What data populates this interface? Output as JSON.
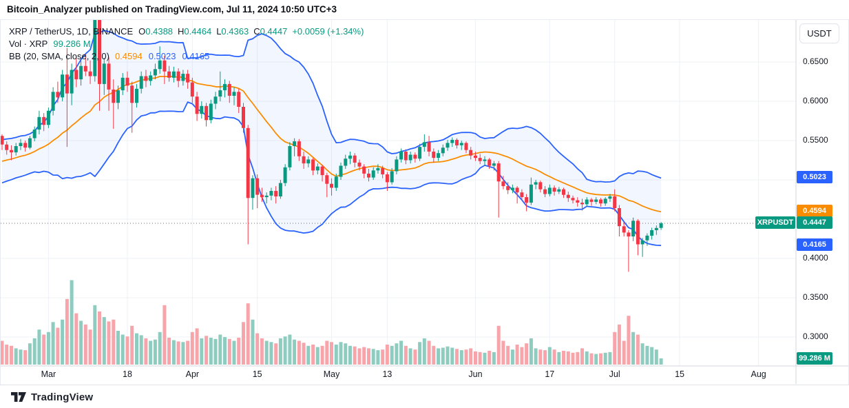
{
  "header": {
    "title": "Bitcoin_Analyzer published on TradingView.com, Jul 11, 2024 10:50 UTC+3"
  },
  "legend": {
    "symbol": "XRP / TetherUS, 1D, BINANCE",
    "ohlc": [
      {
        "label": "O",
        "value": "0.4388"
      },
      {
        "label": "H",
        "value": "0.4464"
      },
      {
        "label": "L",
        "value": "0.4363"
      },
      {
        "label": "C",
        "value": "0.4447"
      }
    ],
    "change": "+0.0059 (+1.34%)",
    "volume_label": "Vol · XRP",
    "volume_value": "99.286 M",
    "bb_label": "BB (20, SMA, close, 2, 0)",
    "bb_values": [
      {
        "value": "0.4594",
        "color": "#fb8c00"
      },
      {
        "value": "0.5023",
        "color": "#2962ff"
      },
      {
        "value": "0.4165",
        "color": "#2962ff"
      }
    ]
  },
  "axis": {
    "currency_button": "USDT",
    "price_labels": [
      {
        "text": "0.6500",
        "price": 0.65
      },
      {
        "text": "0.6000",
        "price": 0.6
      },
      {
        "text": "0.5500",
        "price": 0.55
      },
      {
        "text": "0.4000",
        "price": 0.4
      },
      {
        "text": "0.3500",
        "price": 0.35
      },
      {
        "text": "0.3000",
        "price": 0.3
      }
    ],
    "price_badges": [
      {
        "text": "0.5023",
        "price": 0.5023,
        "bg": "#2962ff",
        "name": "bb-upper-badge"
      },
      {
        "text": "0.4594",
        "price": 0.4594,
        "bg": "#fb8c00",
        "name": "bb-basis-badge"
      },
      {
        "text": "0.4447",
        "price": 0.4447,
        "bg": "#089981",
        "name": "last-price-badge"
      },
      {
        "text": "0.4165",
        "price": 0.4165,
        "bg": "#2962ff",
        "name": "bb-lower-badge"
      }
    ],
    "symbol_chip": {
      "text": "XRPUSDT",
      "price": 0.4447
    },
    "volume_badge": {
      "text": "99.286 M",
      "y": 520,
      "bg": "#089981"
    },
    "time_labels": [
      {
        "text": "Mar",
        "i": 10
      },
      {
        "text": "18",
        "i": 27
      },
      {
        "text": "Apr",
        "i": 41
      },
      {
        "text": "15",
        "i": 55
      },
      {
        "text": "May",
        "i": 71
      },
      {
        "text": "13",
        "i": 83
      },
      {
        "text": "Jun",
        "i": 102
      },
      {
        "text": "17",
        "i": 118
      },
      {
        "text": "Jul",
        "i": 132
      },
      {
        "text": "15",
        "i": 146
      },
      {
        "text": "Aug",
        "i": 163
      }
    ]
  },
  "footer": {
    "brand": "TradingView"
  },
  "colors": {
    "up": "#089981",
    "down": "#f23645",
    "vol_up": "#8fccc0",
    "vol_down": "#f7a5ab",
    "bb_line": "#2962ff",
    "bb_basis": "#fb8c00",
    "bb_fill": "rgba(41,98,255,0.06)",
    "grid": "#eef1f6",
    "axis_line": "#d1d4dc",
    "text": "#131722",
    "dotted_price_line": "#089981"
  },
  "chart_data": {
    "type": "candlestick",
    "symbol": "XRPUSDT",
    "exchange": "BINANCE",
    "interval": "1D",
    "title": "XRP / TetherUS, 1D, BINANCE",
    "x_range": {
      "start": "2024-02-20",
      "end": "2024-07-11"
    },
    "y_axis": {
      "visible_min": 0.28,
      "visible_max": 0.71,
      "gridlines": [
        0.65,
        0.6,
        0.55,
        0.5,
        0.45,
        0.4,
        0.35,
        0.3
      ]
    },
    "last_bar": {
      "open": 0.4388,
      "high": 0.4464,
      "low": 0.4363,
      "close": 0.4447,
      "change": 0.0059,
      "change_pct": 1.34,
      "volume_m": 99.286
    },
    "indicator_bb": {
      "period": 20,
      "source": "close",
      "mult": 2,
      "offset": 0,
      "basis": 0.4594,
      "upper": 0.5023,
      "lower": 0.4165
    },
    "current_price_line": 0.4447,
    "seed_closes": [
      0.506,
      0.51,
      0.508,
      0.512,
      0.515,
      0.511,
      0.509,
      0.513,
      0.518,
      0.522,
      0.519,
      0.523,
      0.528,
      0.532,
      0.529,
      0.535,
      0.54,
      0.546,
      0.552
    ],
    "candles_format": [
      "open",
      "high",
      "low",
      "close",
      "volume_millions"
    ],
    "candles": [
      [
        0.556,
        0.558,
        0.538,
        0.545,
        380
      ],
      [
        0.545,
        0.549,
        0.532,
        0.538,
        320
      ],
      [
        0.538,
        0.544,
        0.525,
        0.535,
        300
      ],
      [
        0.535,
        0.547,
        0.531,
        0.543,
        260
      ],
      [
        0.543,
        0.552,
        0.538,
        0.547,
        240
      ],
      [
        0.547,
        0.55,
        0.536,
        0.541,
        230
      ],
      [
        0.541,
        0.556,
        0.539,
        0.553,
        340
      ],
      [
        0.553,
        0.568,
        0.549,
        0.564,
        420
      ],
      [
        0.564,
        0.588,
        0.558,
        0.58,
        560
      ],
      [
        0.58,
        0.585,
        0.562,
        0.57,
        480
      ],
      [
        0.57,
        0.592,
        0.566,
        0.588,
        520
      ],
      [
        0.588,
        0.618,
        0.582,
        0.612,
        680
      ],
      [
        0.612,
        0.625,
        0.598,
        0.605,
        590
      ],
      [
        0.605,
        0.64,
        0.6,
        0.634,
        720
      ],
      [
        0.634,
        0.668,
        0.542,
        0.61,
        1050
      ],
      [
        0.61,
        0.648,
        0.595,
        0.64,
        1350
      ],
      [
        0.64,
        0.655,
        0.618,
        0.628,
        820
      ],
      [
        0.628,
        0.652,
        0.62,
        0.645,
        700
      ],
      [
        0.645,
        0.66,
        0.632,
        0.638,
        640
      ],
      [
        0.638,
        0.652,
        0.622,
        0.632,
        560
      ],
      [
        0.632,
        0.732,
        0.625,
        0.705,
        950
      ],
      [
        0.705,
        0.718,
        0.588,
        0.622,
        850
      ],
      [
        0.622,
        0.655,
        0.608,
        0.648,
        760
      ],
      [
        0.648,
        0.656,
        0.588,
        0.615,
        690
      ],
      [
        0.615,
        0.628,
        0.565,
        0.598,
        720
      ],
      [
        0.598,
        0.62,
        0.59,
        0.614,
        540
      ],
      [
        0.614,
        0.636,
        0.608,
        0.63,
        480
      ],
      [
        0.63,
        0.638,
        0.612,
        0.62,
        450
      ],
      [
        0.62,
        0.625,
        0.56,
        0.598,
        620
      ],
      [
        0.598,
        0.622,
        0.592,
        0.616,
        500
      ],
      [
        0.616,
        0.638,
        0.61,
        0.632,
        470
      ],
      [
        0.632,
        0.64,
        0.618,
        0.626,
        420
      ],
      [
        0.626,
        0.638,
        0.62,
        0.633,
        380
      ],
      [
        0.633,
        0.648,
        0.628,
        0.641,
        400
      ],
      [
        0.641,
        0.67,
        0.635,
        0.652,
        520
      ],
      [
        0.652,
        0.658,
        0.622,
        0.638,
        950
      ],
      [
        0.638,
        0.645,
        0.625,
        0.63,
        430
      ],
      [
        0.63,
        0.644,
        0.624,
        0.638,
        390
      ],
      [
        0.638,
        0.642,
        0.618,
        0.626,
        370
      ],
      [
        0.626,
        0.64,
        0.62,
        0.635,
        360
      ],
      [
        0.635,
        0.64,
        0.616,
        0.624,
        380
      ],
      [
        0.624,
        0.63,
        0.598,
        0.606,
        520
      ],
      [
        0.606,
        0.612,
        0.575,
        0.584,
        580
      ],
      [
        0.584,
        0.6,
        0.578,
        0.594,
        420
      ],
      [
        0.594,
        0.598,
        0.568,
        0.576,
        460
      ],
      [
        0.576,
        0.602,
        0.572,
        0.597,
        430
      ],
      [
        0.597,
        0.612,
        0.59,
        0.606,
        410
      ],
      [
        0.606,
        0.638,
        0.6,
        0.614,
        480
      ],
      [
        0.614,
        0.628,
        0.605,
        0.622,
        440
      ],
      [
        0.622,
        0.626,
        0.598,
        0.607,
        410
      ],
      [
        0.607,
        0.618,
        0.595,
        0.612,
        380
      ],
      [
        0.612,
        0.616,
        0.585,
        0.593,
        430
      ],
      [
        0.593,
        0.598,
        0.56,
        0.566,
        680
      ],
      [
        0.566,
        0.57,
        0.418,
        0.477,
        980
      ],
      [
        0.477,
        0.506,
        0.462,
        0.502,
        720
      ],
      [
        0.502,
        0.507,
        0.464,
        0.481,
        500
      ],
      [
        0.481,
        0.49,
        0.472,
        0.478,
        420
      ],
      [
        0.478,
        0.484,
        0.47,
        0.48,
        380
      ],
      [
        0.48,
        0.49,
        0.474,
        0.486,
        360
      ],
      [
        0.486,
        0.492,
        0.47,
        0.479,
        340
      ],
      [
        0.479,
        0.5,
        0.476,
        0.496,
        420
      ],
      [
        0.496,
        0.52,
        0.492,
        0.516,
        450
      ],
      [
        0.516,
        0.548,
        0.512,
        0.543,
        480
      ],
      [
        0.543,
        0.553,
        0.53,
        0.549,
        400
      ],
      [
        0.549,
        0.552,
        0.524,
        0.53,
        380
      ],
      [
        0.53,
        0.536,
        0.514,
        0.521,
        350
      ],
      [
        0.521,
        0.53,
        0.516,
        0.526,
        300
      ],
      [
        0.526,
        0.528,
        0.506,
        0.512,
        320
      ],
      [
        0.512,
        0.521,
        0.507,
        0.517,
        280
      ],
      [
        0.517,
        0.519,
        0.498,
        0.506,
        300
      ],
      [
        0.506,
        0.509,
        0.478,
        0.495,
        380
      ],
      [
        0.495,
        0.502,
        0.48,
        0.49,
        360
      ],
      [
        0.49,
        0.508,
        0.486,
        0.504,
        320
      ],
      [
        0.504,
        0.522,
        0.5,
        0.518,
        360
      ],
      [
        0.518,
        0.532,
        0.514,
        0.527,
        340
      ],
      [
        0.527,
        0.536,
        0.52,
        0.531,
        300
      ],
      [
        0.531,
        0.534,
        0.516,
        0.522,
        290
      ],
      [
        0.522,
        0.526,
        0.512,
        0.517,
        260
      ],
      [
        0.517,
        0.52,
        0.502,
        0.508,
        280
      ],
      [
        0.508,
        0.514,
        0.498,
        0.503,
        260
      ],
      [
        0.503,
        0.516,
        0.5,
        0.512,
        250
      ],
      [
        0.512,
        0.52,
        0.508,
        0.515,
        230
      ],
      [
        0.515,
        0.518,
        0.502,
        0.507,
        240
      ],
      [
        0.507,
        0.51,
        0.486,
        0.497,
        320
      ],
      [
        0.497,
        0.515,
        0.494,
        0.511,
        300
      ],
      [
        0.511,
        0.53,
        0.507,
        0.526,
        340
      ],
      [
        0.526,
        0.54,
        0.522,
        0.536,
        380
      ],
      [
        0.536,
        0.539,
        0.52,
        0.525,
        300
      ],
      [
        0.525,
        0.536,
        0.521,
        0.532,
        260
      ],
      [
        0.532,
        0.535,
        0.522,
        0.527,
        240
      ],
      [
        0.527,
        0.546,
        0.524,
        0.542,
        360
      ],
      [
        0.542,
        0.558,
        0.536,
        0.548,
        420
      ],
      [
        0.548,
        0.556,
        0.53,
        0.536,
        380
      ],
      [
        0.536,
        0.54,
        0.522,
        0.528,
        300
      ],
      [
        0.528,
        0.538,
        0.524,
        0.534,
        260
      ],
      [
        0.534,
        0.545,
        0.53,
        0.541,
        270
      ],
      [
        0.541,
        0.551,
        0.537,
        0.547,
        290
      ],
      [
        0.547,
        0.554,
        0.542,
        0.551,
        270
      ],
      [
        0.551,
        0.553,
        0.54,
        0.544,
        250
      ],
      [
        0.544,
        0.55,
        0.538,
        0.547,
        230
      ],
      [
        0.547,
        0.549,
        0.534,
        0.538,
        240
      ],
      [
        0.538,
        0.542,
        0.526,
        0.531,
        260
      ],
      [
        0.531,
        0.536,
        0.524,
        0.528,
        210
      ],
      [
        0.528,
        0.533,
        0.52,
        0.524,
        200
      ],
      [
        0.524,
        0.53,
        0.518,
        0.526,
        190
      ],
      [
        0.526,
        0.528,
        0.514,
        0.518,
        220
      ],
      [
        0.518,
        0.524,
        0.512,
        0.521,
        200
      ],
      [
        0.521,
        0.524,
        0.452,
        0.498,
        620
      ],
      [
        0.498,
        0.505,
        0.488,
        0.492,
        380
      ],
      [
        0.492,
        0.497,
        0.482,
        0.487,
        300
      ],
      [
        0.487,
        0.494,
        0.483,
        0.49,
        240
      ],
      [
        0.49,
        0.492,
        0.47,
        0.484,
        320
      ],
      [
        0.484,
        0.488,
        0.474,
        0.478,
        280
      ],
      [
        0.478,
        0.482,
        0.46,
        0.471,
        340
      ],
      [
        0.471,
        0.503,
        0.468,
        0.494,
        420
      ],
      [
        0.494,
        0.5,
        0.488,
        0.497,
        260
      ],
      [
        0.497,
        0.499,
        0.484,
        0.488,
        240
      ],
      [
        0.488,
        0.492,
        0.478,
        0.482,
        230
      ],
      [
        0.482,
        0.494,
        0.479,
        0.49,
        280
      ],
      [
        0.49,
        0.493,
        0.48,
        0.485,
        240
      ],
      [
        0.485,
        0.491,
        0.482,
        0.488,
        200
      ],
      [
        0.488,
        0.49,
        0.477,
        0.481,
        220
      ],
      [
        0.481,
        0.485,
        0.472,
        0.477,
        210
      ],
      [
        0.477,
        0.48,
        0.47,
        0.474,
        190
      ],
      [
        0.474,
        0.478,
        0.466,
        0.471,
        200
      ],
      [
        0.471,
        0.476,
        0.461,
        0.469,
        260
      ],
      [
        0.469,
        0.478,
        0.466,
        0.475,
        210
      ],
      [
        0.475,
        0.477,
        0.467,
        0.472,
        180
      ],
      [
        0.472,
        0.478,
        0.469,
        0.475,
        170
      ],
      [
        0.475,
        0.477,
        0.466,
        0.47,
        180
      ],
      [
        0.47,
        0.478,
        0.467,
        0.476,
        190
      ],
      [
        0.476,
        0.482,
        0.472,
        0.479,
        200
      ],
      [
        0.479,
        0.488,
        0.46,
        0.464,
        520
      ],
      [
        0.464,
        0.468,
        0.428,
        0.441,
        640
      ],
      [
        0.441,
        0.446,
        0.428,
        0.433,
        380
      ],
      [
        0.433,
        0.436,
        0.383,
        0.428,
        780
      ],
      [
        0.428,
        0.452,
        0.422,
        0.448,
        520
      ],
      [
        0.448,
        0.45,
        0.404,
        0.418,
        480
      ],
      [
        0.418,
        0.426,
        0.402,
        0.423,
        340
      ],
      [
        0.423,
        0.432,
        0.416,
        0.429,
        300
      ],
      [
        0.429,
        0.439,
        0.424,
        0.436,
        280
      ],
      [
        0.436,
        0.442,
        0.43,
        0.4388,
        240
      ],
      [
        0.4388,
        0.4464,
        0.4363,
        0.4447,
        99.286
      ]
    ]
  }
}
